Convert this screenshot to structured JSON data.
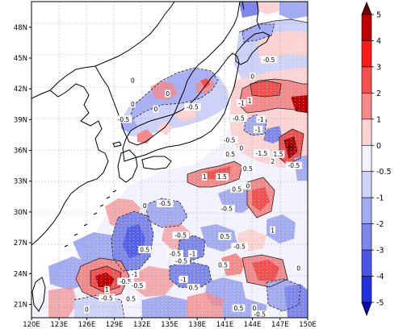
{
  "map": {
    "lon_range": [
      120,
      150
    ],
    "lat_range": [
      19.7,
      50.5
    ],
    "lon_ticks": [
      "120E",
      "123E",
      "126E",
      "129E",
      "132E",
      "135E",
      "138E",
      "141E",
      "144E",
      "147E",
      "150E"
    ],
    "lat_ticks": [
      "21N",
      "24N",
      "27N",
      "30N",
      "33N",
      "36N",
      "39N",
      "42N",
      "45N",
      "48N"
    ],
    "land_color": "#ffffff",
    "grid": "dotted"
  },
  "colorbar": {
    "labels": [
      "5",
      "4",
      "3",
      "2",
      "1",
      "0",
      "-0.5",
      "-1",
      "-2",
      "-3",
      "-4",
      "-5"
    ],
    "colors": [
      "#6e0000",
      "#c00000",
      "#ff1a1a",
      "#f55050",
      "#f58a8a",
      "#fcd3d3",
      "#f2f2ff",
      "#cdd2f8",
      "#a3abf2",
      "#7d87ec",
      "#4a56e8",
      "#2230e0",
      "#0b0bb8"
    ]
  },
  "contour_labels": [
    {
      "text": "-0.5",
      "lon": 145.8,
      "lat": 44.8
    },
    {
      "text": "0",
      "lon": 144.0,
      "lat": 43.2
    },
    {
      "text": "0",
      "lon": 131.0,
      "lat": 42.8
    },
    {
      "text": "0",
      "lon": 134.8,
      "lat": 41.5
    },
    {
      "text": "-0.5",
      "lon": 137.5,
      "lat": 40.2
    },
    {
      "text": "0",
      "lon": 131.0,
      "lat": 40.5
    },
    {
      "text": "0",
      "lon": 133.5,
      "lat": 40.0
    },
    {
      "text": "-0.5",
      "lon": 130.0,
      "lat": 39.0
    },
    {
      "text": "-1",
      "lon": 142.8,
      "lat": 40.6
    },
    {
      "text": "1",
      "lon": 143.7,
      "lat": 40.8
    },
    {
      "text": "-0.5",
      "lon": 142.5,
      "lat": 39.1
    },
    {
      "text": "-1",
      "lon": 144.9,
      "lat": 39.0
    },
    {
      "text": "-1",
      "lon": 144.6,
      "lat": 38.0
    },
    {
      "text": "-0.5",
      "lon": 141.5,
      "lat": 37.0
    },
    {
      "text": "0",
      "lon": 142.8,
      "lat": 36.2
    },
    {
      "text": "-1.5",
      "lon": 145.0,
      "lat": 35.7
    },
    {
      "text": "1.5",
      "lon": 146.8,
      "lat": 35.6
    },
    {
      "text": "0.5",
      "lon": 141.6,
      "lat": 35.6
    },
    {
      "text": "2",
      "lon": 146.2,
      "lat": 34.9
    },
    {
      "text": "0.5",
      "lon": 143.5,
      "lat": 34.2
    },
    {
      "text": "-0.5",
      "lon": 148.5,
      "lat": 34.5
    },
    {
      "text": "1",
      "lon": 138.8,
      "lat": 33.4
    },
    {
      "text": "1.5",
      "lon": 140.7,
      "lat": 33.4
    },
    {
      "text": "0",
      "lon": 143.5,
      "lat": 32.5
    },
    {
      "text": "0.5",
      "lon": 142.3,
      "lat": 32.2
    },
    {
      "text": "-0.5",
      "lon": 134.5,
      "lat": 30.8
    },
    {
      "text": "-0.5",
      "lon": 141.2,
      "lat": 30.3
    },
    {
      "text": "0",
      "lon": 132.3,
      "lat": 30.6
    },
    {
      "text": "1",
      "lon": 146.2,
      "lat": 28.2
    },
    {
      "text": "0.5",
      "lon": 141.0,
      "lat": 27.6
    },
    {
      "text": "-0.5",
      "lon": 136.2,
      "lat": 27.7
    },
    {
      "text": "-0.5",
      "lon": 142.6,
      "lat": 26.6
    },
    {
      "text": "0.5",
      "lon": 132.3,
      "lat": 26.3
    },
    {
      "text": "-0.5",
      "lon": 135.6,
      "lat": 25.9
    },
    {
      "text": "-1",
      "lon": 137.5,
      "lat": 25.9
    },
    {
      "text": "-0.5",
      "lon": 136.3,
      "lat": 25.2
    },
    {
      "text": "0.5",
      "lon": 140.8,
      "lat": 24.8
    },
    {
      "text": "0",
      "lon": 149.0,
      "lat": 24.5
    },
    {
      "text": "-1",
      "lon": 131.2,
      "lat": 23.9
    },
    {
      "text": "-0.5",
      "lon": 130.2,
      "lat": 23.2
    },
    {
      "text": "-0.5",
      "lon": 131.5,
      "lat": 22.8
    },
    {
      "text": "-1",
      "lon": 136.5,
      "lat": 23.4
    },
    {
      "text": "0.5",
      "lon": 137.6,
      "lat": 22.6
    },
    {
      "text": "1",
      "lon": 128.2,
      "lat": 22.4
    },
    {
      "text": "-0.5",
      "lon": 128.2,
      "lat": 21.6
    },
    {
      "text": "0.5",
      "lon": 130.8,
      "lat": 21.5
    },
    {
      "text": "0",
      "lon": 126.0,
      "lat": 20.5
    },
    {
      "text": "0.5",
      "lon": 142.5,
      "lat": 20.6
    },
    {
      "text": "0",
      "lon": 144.2,
      "lat": 20.6
    },
    {
      "text": "-0.5",
      "lon": 144.8,
      "lat": 20.0
    }
  ]
}
